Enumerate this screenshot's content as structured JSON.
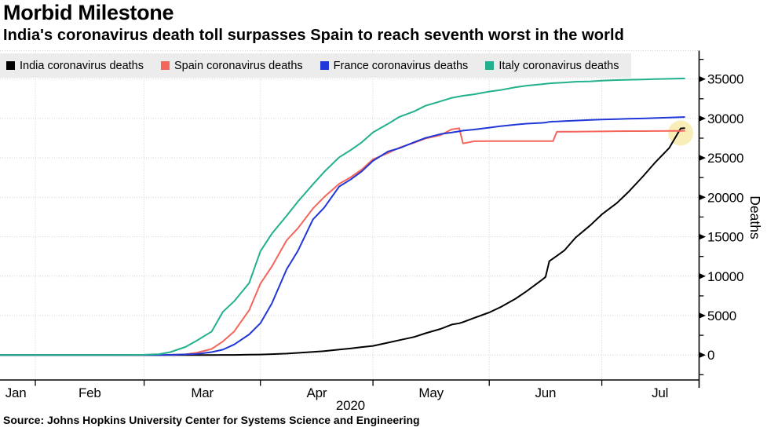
{
  "header": {
    "title": "Morbid Milestone",
    "subtitle": "India's coronavirus death toll surpasses Spain to reach seventh worst in the world"
  },
  "source": {
    "text": "Source: Johns Hopkins University Center for Systems Science and Engineering"
  },
  "colors": {
    "background": "#ffffff",
    "legend_bg": "#ececec",
    "gridline": "#d2d2d2",
    "axis": "#000000",
    "highlight": "#f6e07e"
  },
  "chart_data": {
    "type": "line",
    "title": "Morbid Milestone",
    "subtitle": "India's coronavirus death toll surpasses Spain to reach seventh worst in the world",
    "xlabel": "2020",
    "ylabel": "Deaths",
    "ylim": [
      0,
      35000
    ],
    "yticks": [
      0,
      5000,
      10000,
      15000,
      20000,
      25000,
      30000,
      35000
    ],
    "grid": true,
    "legend_position": "top",
    "x_unit": "days since 2020-01-22",
    "months": [
      {
        "label": "Jan",
        "center_day": 4.8
      },
      {
        "label": "Feb",
        "center_day": 24.5
      },
      {
        "label": "Mar",
        "center_day": 54.5
      },
      {
        "label": "Apr",
        "center_day": 85
      },
      {
        "label": "May",
        "center_day": 115.5
      },
      {
        "label": "Jun",
        "center_day": 146
      },
      {
        "label": "Jul",
        "center_day": 176.5
      }
    ],
    "month_boundary_days": [
      10,
      39,
      70,
      100,
      131,
      161
    ],
    "year_label": "2020",
    "days": [
      0,
      10,
      20,
      28,
      35,
      39,
      43,
      46,
      50,
      53,
      57,
      60,
      63,
      67,
      70,
      73,
      77,
      80,
      84,
      87,
      91,
      94,
      97,
      100,
      104,
      107,
      111,
      114,
      118,
      121,
      123,
      124,
      127,
      131,
      134,
      138,
      141,
      145,
      146,
      147,
      148,
      149,
      151,
      154,
      158,
      161,
      165,
      168,
      172,
      175,
      179,
      182,
      183
    ],
    "series": [
      {
        "key": "india",
        "name": "India coronavirus deaths",
        "color": "#000000",
        "values": [
          0,
          0,
          0,
          0,
          0,
          0,
          0,
          0,
          1,
          2,
          4,
          7,
          10,
          35,
          58,
          109,
          178,
          273,
          392,
          488,
          686,
          824,
          1008,
          1154,
          1568,
          1886,
          2294,
          2760,
          3303,
          3868,
          4024,
          4172,
          4706,
          5394,
          6075,
          7135,
          8102,
          9520,
          9900,
          11903,
          12237,
          12573,
          13254,
          14894,
          16475,
          17834,
          19268,
          20642,
          22674,
          24309,
          26273,
          28732,
          28770
        ]
      },
      {
        "key": "spain",
        "name": "Spain coronavirus deaths",
        "color": "#f4655c",
        "values": [
          0,
          0,
          0,
          0,
          0,
          3,
          17,
          28,
          84,
          288,
          767,
          1720,
          2991,
          5690,
          9053,
          11198,
          14555,
          16081,
          18579,
          20043,
          21717,
          22524,
          23521,
          24824,
          25613,
          26299,
          26920,
          27459,
          27888,
          28628,
          28752,
          26834,
          27117,
          27127,
          27127,
          27136,
          27136,
          27136,
          27136,
          27136,
          27136,
          28313,
          28322,
          28327,
          28346,
          28363,
          28388,
          28396,
          28403,
          28413,
          28424,
          28432,
          28434
        ]
      },
      {
        "key": "france",
        "name": "France coronavirus deaths",
        "color": "#2137d8",
        "values": [
          0,
          0,
          1,
          1,
          2,
          2,
          4,
          19,
          79,
          127,
          372,
          674,
          1331,
          2606,
          4032,
          6507,
          10887,
          13215,
          17188,
          18703,
          21373,
          22245,
          23293,
          24628,
          25812,
          26230,
          26991,
          27532,
          28022,
          28218,
          28367,
          28460,
          28599,
          28833,
          29021,
          29212,
          29346,
          29439,
          29482,
          29575,
          29603,
          29617,
          29666,
          29731,
          29813,
          29875,
          29920,
          29965,
          30004,
          30054,
          30120,
          30172,
          30182
        ]
      },
      {
        "key": "italy",
        "name": "Italy coronavirus deaths",
        "color": "#22b08d",
        "values": [
          0,
          0,
          0,
          1,
          12,
          34,
          107,
          366,
          1016,
          1809,
          2978,
          5476,
          6820,
          9134,
          13155,
          15362,
          17669,
          19468,
          21645,
          23227,
          25085,
          25969,
          26977,
          28236,
          29315,
          30201,
          30911,
          31610,
          32169,
          32616,
          32785,
          32877,
          33072,
          33415,
          33601,
          33964,
          34167,
          34345,
          34405,
          34448,
          34480,
          34514,
          34561,
          34657,
          34716,
          34788,
          34869,
          34914,
          34954,
          34997,
          35028,
          35073,
          35082
        ]
      }
    ],
    "highlight": {
      "day": 182,
      "value": 28150,
      "radius_px": 16,
      "color": "#f6e07e",
      "opacity": 0.55
    }
  }
}
